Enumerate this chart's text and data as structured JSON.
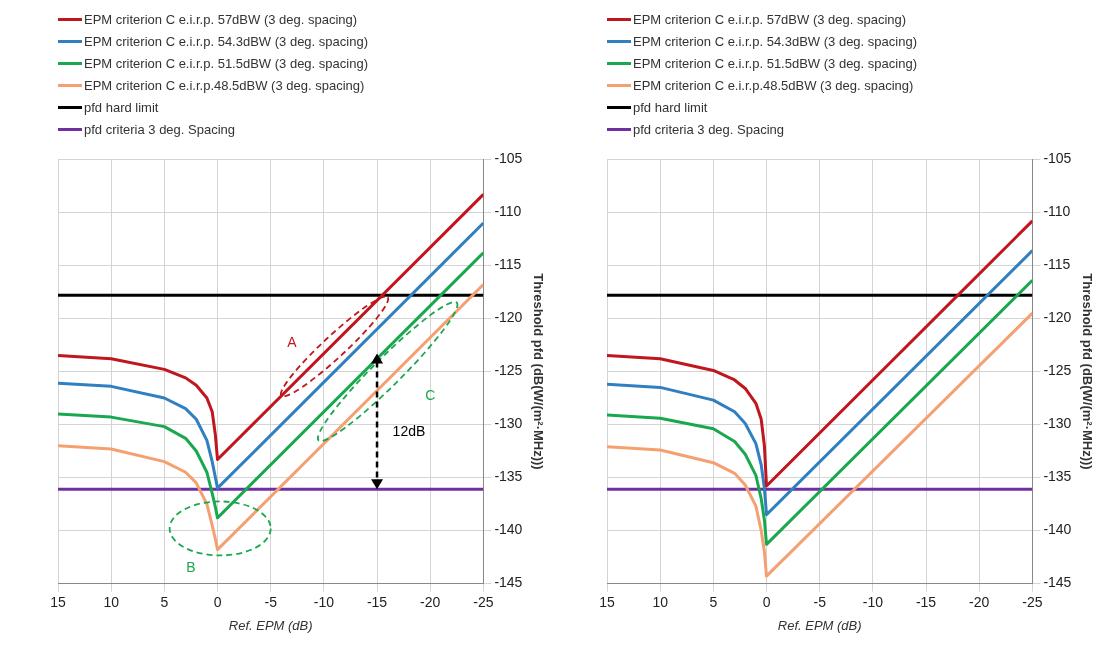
{
  "chart_data": [
    {
      "type": "line",
      "xlabel": "Ref. EPM (dB)",
      "ylabel": "Threshold pfd (dB(W/(m²·MHz)))",
      "xlim": [
        15,
        -25
      ],
      "xticks": [
        15,
        10,
        5,
        0,
        -5,
        -10,
        -15,
        -20,
        -25
      ],
      "ylim": [
        -145,
        -105
      ],
      "yticks": [
        -145,
        -140,
        -135,
        -130,
        -125,
        -120,
        -115,
        -110,
        -105
      ],
      "grid": true,
      "legend": "top left",
      "line_style": "solid",
      "annotations": [
        "A",
        "B",
        "C",
        "12dB"
      ],
      "series": [
        {
          "name": "EPM criterion C e.i.r.p. 57dBW (3 deg. spacing)",
          "color": "#c0161e",
          "x": [
            15,
            10,
            5,
            3,
            2,
            1,
            0.5,
            0.2,
            0,
            -25
          ],
          "values": [
            -123.5,
            -123.8,
            -124.8,
            -125.6,
            -126.3,
            -127.5,
            -128.8,
            -131,
            -133.3,
            -108.3
          ]
        },
        {
          "name": "EPM criterion C e.i.r.p. 54.3dBW (3 deg. spacing)",
          "color": "#2f7fc1",
          "x": [
            15,
            10,
            5,
            3,
            2,
            1,
            0.5,
            0.2,
            0,
            -25
          ],
          "values": [
            -126.1,
            -126.4,
            -127.5,
            -128.5,
            -129.5,
            -131.5,
            -133.5,
            -135,
            -136,
            -111
          ]
        },
        {
          "name": "EPM criterion C e.i.r.p. 51.5dBW (3 deg. spacing)",
          "color": "#1aa84f",
          "x": [
            15,
            10,
            5,
            3,
            2,
            1,
            0.5,
            0.2,
            0,
            -25
          ],
          "values": [
            -129,
            -129.3,
            -130.2,
            -131.3,
            -132.5,
            -134.5,
            -136.5,
            -137.8,
            -138.8,
            -113.8
          ]
        },
        {
          "name": "EPM criterion C e.i.r.p.48.5dBW (3 deg. spacing)",
          "color": "#f4a070",
          "x": [
            15,
            10,
            5,
            3,
            2,
            1,
            0.5,
            0.2,
            0,
            -25
          ],
          "values": [
            -132,
            -132.3,
            -133.5,
            -134.5,
            -135.5,
            -137.5,
            -139.5,
            -140.8,
            -141.8,
            -116.8
          ]
        },
        {
          "name": "pfd hard limit",
          "color": "#000000",
          "x": [
            15,
            -25
          ],
          "values": [
            -117.8,
            -117.8
          ]
        },
        {
          "name": "pfd criteria 3 deg. Spacing",
          "color": "#7030a0",
          "x": [
            15,
            -25
          ],
          "values": [
            -136.1,
            -136.1
          ]
        }
      ]
    },
    {
      "type": "line",
      "xlabel": "Ref. EPM (dB)",
      "ylabel": "Threshold pfd (dB(W/(m²·MHz)))",
      "xlim": [
        15,
        -25
      ],
      "xticks": [
        15,
        10,
        5,
        0,
        -5,
        -10,
        -15,
        -20,
        -25
      ],
      "ylim": [
        -145,
        -105
      ],
      "yticks": [
        -145,
        -140,
        -135,
        -130,
        -125,
        -120,
        -115,
        -110,
        -105
      ],
      "grid": true,
      "legend": "top left",
      "line_style": "solid",
      "series": [
        {
          "name": "EPM criterion C e.i.r.p. 57dBW (3 deg. spacing)",
          "color": "#c0161e",
          "x": [
            15,
            10,
            5,
            3,
            2,
            1,
            0.5,
            0.2,
            0,
            -25
          ],
          "values": [
            -123.5,
            -123.8,
            -124.9,
            -125.8,
            -126.6,
            -128,
            -129.5,
            -132,
            -135.8,
            -110.8
          ]
        },
        {
          "name": "EPM criterion C e.i.r.p. 54.3dBW (3 deg. spacing)",
          "color": "#2f7fc1",
          "x": [
            15,
            10,
            5,
            3,
            2,
            1,
            0.5,
            0.2,
            0,
            -25
          ],
          "values": [
            -126.2,
            -126.5,
            -127.7,
            -128.8,
            -129.9,
            -131.8,
            -133.8,
            -136,
            -138.5,
            -113.6
          ]
        },
        {
          "name": "EPM criterion C e.i.r.p. 51.5dBW (3 deg. spacing)",
          "color": "#1aa84f",
          "x": [
            15,
            10,
            5,
            3,
            2,
            1,
            0.5,
            0.2,
            0,
            -25
          ],
          "values": [
            -129.1,
            -129.4,
            -130.4,
            -131.6,
            -132.8,
            -134.8,
            -137,
            -139,
            -141.3,
            -116.4
          ]
        },
        {
          "name": "EPM criterion C e.i.r.p.48.5dBW (3 deg. spacing)",
          "color": "#f4a070",
          "x": [
            15,
            10,
            5,
            3,
            2,
            1,
            0.5,
            0.2,
            0,
            -25
          ],
          "values": [
            -132.1,
            -132.4,
            -133.6,
            -134.6,
            -135.7,
            -137.7,
            -140,
            -142,
            -144.3,
            -119.5
          ]
        },
        {
          "name": "pfd hard limit",
          "color": "#000000",
          "x": [
            15,
            -25
          ],
          "values": [
            -117.8,
            -117.8
          ]
        },
        {
          "name": "pfd criteria 3 deg. Spacing",
          "color": "#7030a0",
          "x": [
            15,
            -25
          ],
          "values": [
            -136.1,
            -136.1
          ]
        }
      ]
    }
  ]
}
